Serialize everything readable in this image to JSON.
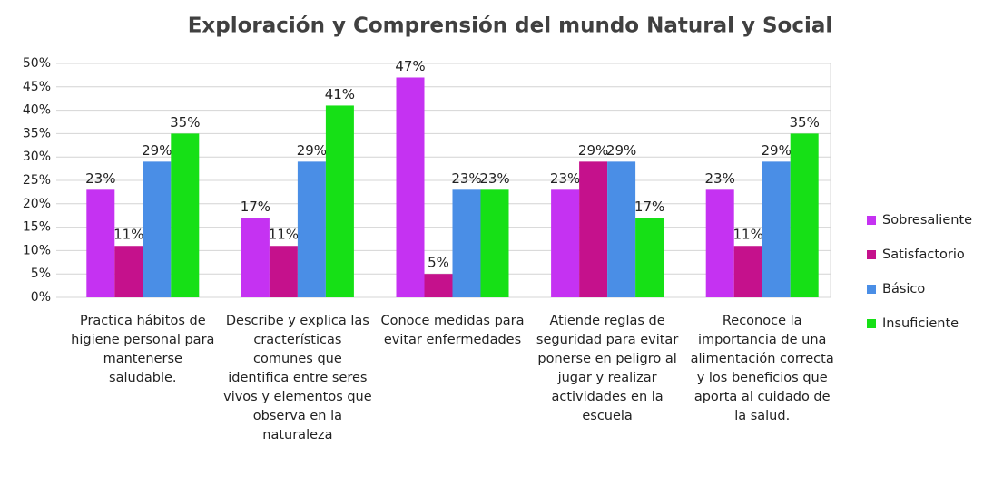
{
  "chart_data": {
    "type": "bar",
    "title": "Exploración y Comprensión del mundo Natural y Social",
    "categories": [
      "Practica hábitos de higiene personal para mantenerse saludable.",
      "Describe y explica las cracterísticas comunes que identifica entre seres vivos y elementos que observa en la naturaleza",
      "Conoce medidas para evitar enfermedades",
      "Atiende reglas de seguridad para evitar ponerse en peligro al jugar y realizar actividades en la escuela",
      "Reconoce la importancia de una alimentación correcta y los beneficios que aporta al cuidado de la salud."
    ],
    "series": [
      {
        "name": "Sobresaliente",
        "color": "#c532f2",
        "values": [
          23,
          17,
          47,
          23,
          23
        ],
        "value_labels": [
          "23%",
          "17%",
          "47%",
          "23%",
          "23%"
        ]
      },
      {
        "name": "Satisfactorio",
        "color": "#c5118c",
        "values": [
          11,
          11,
          5,
          29,
          11
        ],
        "value_labels": [
          "11%",
          "11%",
          "5%",
          "29%",
          "11%"
        ]
      },
      {
        "name": "Básico",
        "color": "#4a8ee6",
        "values": [
          29,
          29,
          23,
          29,
          29
        ],
        "value_labels": [
          "29%",
          "29%",
          "23%",
          "29%",
          "29%"
        ]
      },
      {
        "name": "Insuficiente",
        "color": "#16e016",
        "values": [
          35,
          41,
          23,
          17,
          35
        ],
        "value_labels": [
          "35%",
          "41%",
          "23%",
          "17%",
          "35%"
        ]
      }
    ],
    "ylim": [
      0,
      50
    ],
    "yticks": [
      {
        "value": 0,
        "label": "0%"
      },
      {
        "value": 5,
        "label": "5%"
      },
      {
        "value": 10,
        "label": "10%"
      },
      {
        "value": 15,
        "label": "15%"
      },
      {
        "value": 20,
        "label": "20%"
      },
      {
        "value": 25,
        "label": "25%"
      },
      {
        "value": 30,
        "label": "30%"
      },
      {
        "value": 35,
        "label": "35%"
      },
      {
        "value": 40,
        "label": "40%"
      },
      {
        "value": 45,
        "label": "45%"
      },
      {
        "value": 50,
        "label": "50%"
      }
    ],
    "grid": true,
    "legend": "right"
  }
}
